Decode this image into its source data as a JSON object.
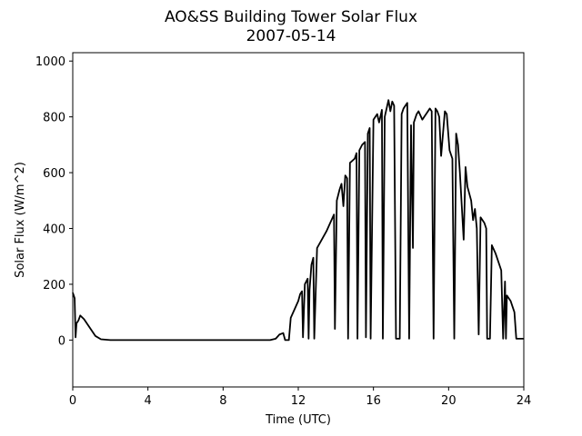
{
  "chart_data": {
    "type": "line",
    "title": "AO&SS Building Tower Solar Flux",
    "subtitle": "2007-05-14",
    "x_label": "Time (UTC)",
    "y_label": "Solar Flux (W/m^2)",
    "xlim": [
      0,
      24
    ],
    "ylim": [
      -168,
      1030
    ],
    "xticks": [
      0,
      4,
      8,
      12,
      16,
      20,
      24
    ],
    "yticks": [
      0,
      200,
      400,
      600,
      800,
      1000
    ],
    "color": "#000000",
    "x": [
      0,
      0.1,
      0.15,
      0.2,
      0.3,
      0.4,
      0.6,
      0.8,
      1.0,
      1.2,
      1.5,
      2,
      4,
      8,
      10.5,
      10.8,
      11,
      11.2,
      11.3,
      11.5,
      11.6,
      11.8,
      12,
      12.1,
      12.2,
      12.25,
      12.35,
      12.5,
      12.55,
      12.6,
      12.7,
      12.8,
      12.85,
      13,
      13.5,
      13.9,
      13.95,
      14.05,
      14.2,
      14.3,
      14.4,
      14.5,
      14.6,
      14.65,
      14.75,
      15,
      15.1,
      15.15,
      15.25,
      15.4,
      15.55,
      15.6,
      15.7,
      15.8,
      15.85,
      16,
      16.2,
      16.3,
      16.45,
      16.5,
      16.6,
      16.7,
      16.8,
      16.9,
      17,
      17.1,
      17.2,
      17.4,
      17.5,
      17.6,
      17.8,
      17.9,
      18,
      18.1,
      18.15,
      18.3,
      18.4,
      18.6,
      18.8,
      19,
      19.1,
      19.2,
      19.3,
      19.4,
      19.5,
      19.6,
      19.8,
      19.9,
      20.05,
      20.2,
      20.3,
      20.4,
      20.5,
      20.6,
      20.7,
      20.8,
      20.9,
      21,
      21.2,
      21.3,
      21.4,
      21.5,
      21.6,
      21.7,
      21.9,
      22,
      22.05,
      22.2,
      22.3,
      22.5,
      22.6,
      22.8,
      22.9,
      23,
      23.05,
      23.1,
      23.3,
      23.4,
      23.5,
      23.6,
      24
    ],
    "values": [
      170,
      150,
      10,
      60,
      70,
      88,
      75,
      55,
      35,
      15,
      3,
      0,
      0,
      0,
      0,
      5,
      20,
      25,
      0,
      0,
      80,
      110,
      140,
      165,
      175,
      10,
      200,
      220,
      5,
      180,
      270,
      295,
      5,
      330,
      390,
      450,
      40,
      500,
      540,
      560,
      480,
      590,
      580,
      5,
      635,
      650,
      670,
      5,
      680,
      700,
      710,
      10,
      740,
      760,
      5,
      790,
      810,
      780,
      825,
      5,
      800,
      830,
      860,
      820,
      855,
      840,
      5,
      5,
      810,
      830,
      850,
      5,
      770,
      330,
      780,
      810,
      820,
      790,
      810,
      830,
      820,
      5,
      830,
      820,
      800,
      660,
      820,
      810,
      680,
      650,
      5,
      740,
      700,
      600,
      480,
      360,
      620,
      550,
      500,
      430,
      470,
      400,
      20,
      440,
      420,
      400,
      5,
      5,
      340,
      310,
      290,
      250,
      5,
      210,
      5,
      160,
      140,
      120,
      100,
      5,
      5
    ]
  }
}
